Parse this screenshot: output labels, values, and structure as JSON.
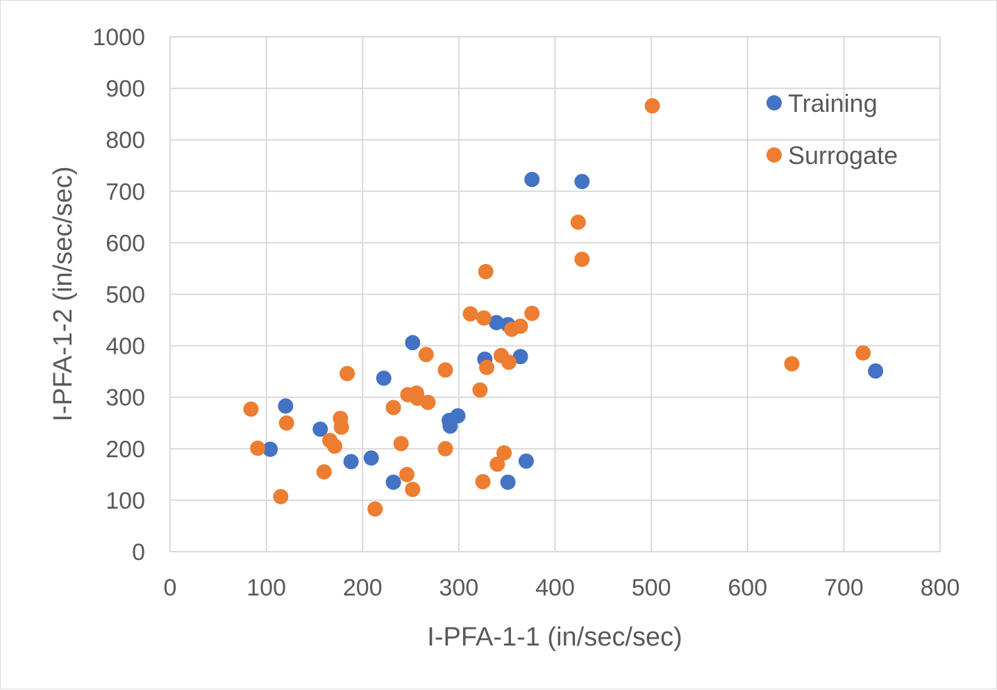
{
  "chart_data": {
    "type": "scatter",
    "title": "",
    "xlabel": "I-PFA-1-1 (in/sec/sec)",
    "ylabel": "I-PFA-1-2 (in/sec/sec)",
    "xlim": [
      0,
      800
    ],
    "ylim": [
      0,
      1000
    ],
    "x_ticks": [
      0,
      100,
      200,
      300,
      400,
      500,
      600,
      700,
      800
    ],
    "y_ticks": [
      0,
      100,
      200,
      300,
      400,
      500,
      600,
      700,
      800,
      900,
      1000
    ],
    "grid": true,
    "legend_position": "top-right",
    "series": [
      {
        "name": "Training",
        "color": "#4472c4",
        "points": [
          [
            104,
            199
          ],
          [
            120,
            283
          ],
          [
            156,
            238
          ],
          [
            188,
            175
          ],
          [
            209,
            182
          ],
          [
            222,
            337
          ],
          [
            232,
            135
          ],
          [
            252,
            406
          ],
          [
            290,
            255
          ],
          [
            291,
            244
          ],
          [
            299,
            264
          ],
          [
            327,
            374
          ],
          [
            339,
            445
          ],
          [
            351,
            441
          ],
          [
            351,
            135
          ],
          [
            364,
            379
          ],
          [
            370,
            176
          ],
          [
            376,
            723
          ],
          [
            428,
            719
          ],
          [
            733,
            351
          ]
        ]
      },
      {
        "name": "Surrogate",
        "color": "#ed7d31",
        "points": [
          [
            84,
            277
          ],
          [
            91,
            201
          ],
          [
            115,
            107
          ],
          [
            121,
            250
          ],
          [
            160,
            155
          ],
          [
            166,
            216
          ],
          [
            171,
            205
          ],
          [
            177,
            259
          ],
          [
            178,
            242
          ],
          [
            184,
            346
          ],
          [
            213,
            83
          ],
          [
            232,
            280
          ],
          [
            240,
            210
          ],
          [
            246,
            150
          ],
          [
            247,
            305
          ],
          [
            252,
            121
          ],
          [
            256,
            308
          ],
          [
            257,
            298
          ],
          [
            268,
            290
          ],
          [
            266,
            383
          ],
          [
            286,
            353
          ],
          [
            286,
            200
          ],
          [
            312,
            462
          ],
          [
            322,
            314
          ],
          [
            325,
            136
          ],
          [
            326,
            454
          ],
          [
            328,
            544
          ],
          [
            329,
            358
          ],
          [
            340,
            170
          ],
          [
            344,
            381
          ],
          [
            347,
            192
          ],
          [
            352,
            368
          ],
          [
            355,
            432
          ],
          [
            364,
            438
          ],
          [
            376,
            463
          ],
          [
            424,
            640
          ],
          [
            428,
            568
          ],
          [
            501,
            866
          ],
          [
            646,
            365
          ],
          [
            720,
            386
          ]
        ]
      }
    ]
  }
}
